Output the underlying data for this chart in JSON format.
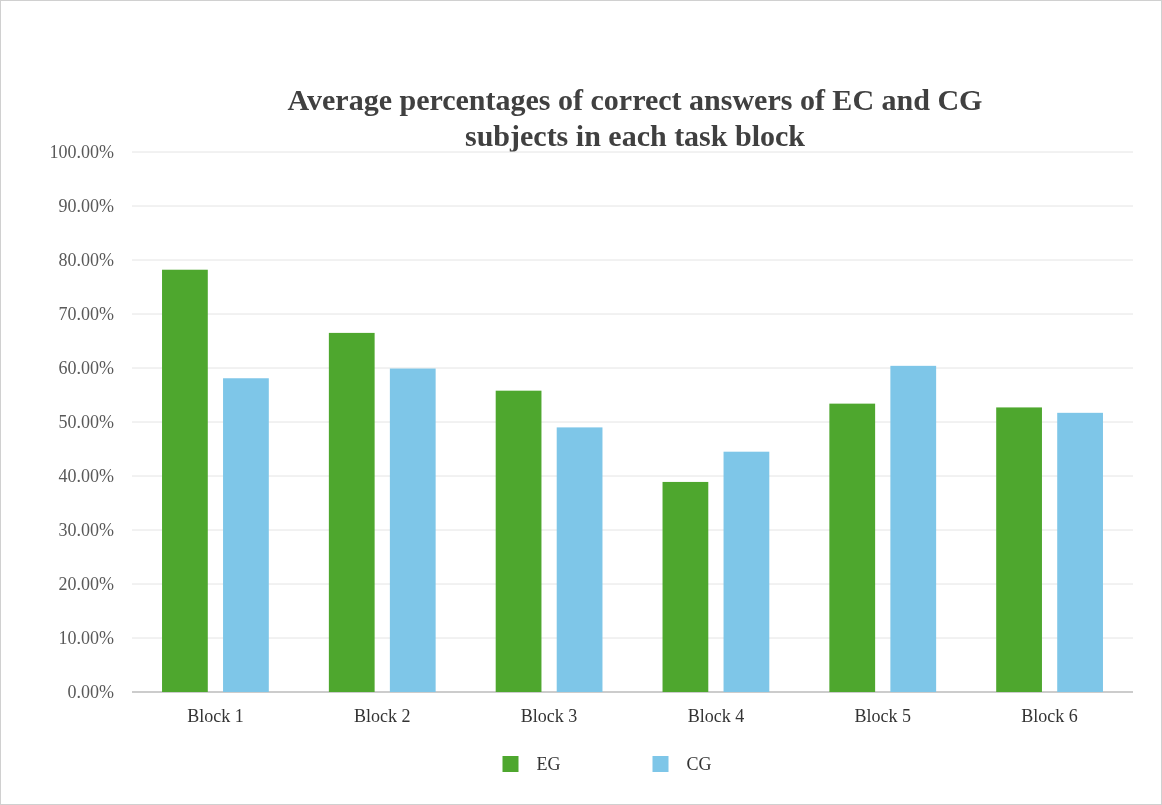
{
  "chart_data": {
    "type": "bar",
    "title": "Average percentages of correct answers of EC and CG subjects in each task block",
    "categories": [
      "Block 1",
      "Block 2",
      "Block 3",
      "Block 4",
      "Block 5",
      "Block 6"
    ],
    "series": [
      {
        "name": "EG",
        "color": "#4ea72e",
        "values": [
          78.2,
          66.5,
          55.8,
          38.9,
          53.4,
          52.7
        ]
      },
      {
        "name": "CG",
        "color": "#7ec6e8",
        "values": [
          58.1,
          59.9,
          49.0,
          44.5,
          60.4,
          51.7
        ]
      }
    ],
    "ylim": [
      0,
      100
    ],
    "yticks": [
      {
        "value": 0,
        "label": "0.00%"
      },
      {
        "value": 10,
        "label": "10.00%"
      },
      {
        "value": 20,
        "label": "20.00%"
      },
      {
        "value": 30,
        "label": "30.00%"
      },
      {
        "value": 40,
        "label": "40.00%"
      },
      {
        "value": 50,
        "label": "50.00%"
      },
      {
        "value": 60,
        "label": "60.00%"
      },
      {
        "value": 70,
        "label": "70.00%"
      },
      {
        "value": 80,
        "label": "80.00%"
      },
      {
        "value": 90,
        "label": "90.00%"
      },
      {
        "value": 100,
        "label": "100.00%"
      }
    ],
    "grid": "y",
    "legend": "bottom"
  }
}
